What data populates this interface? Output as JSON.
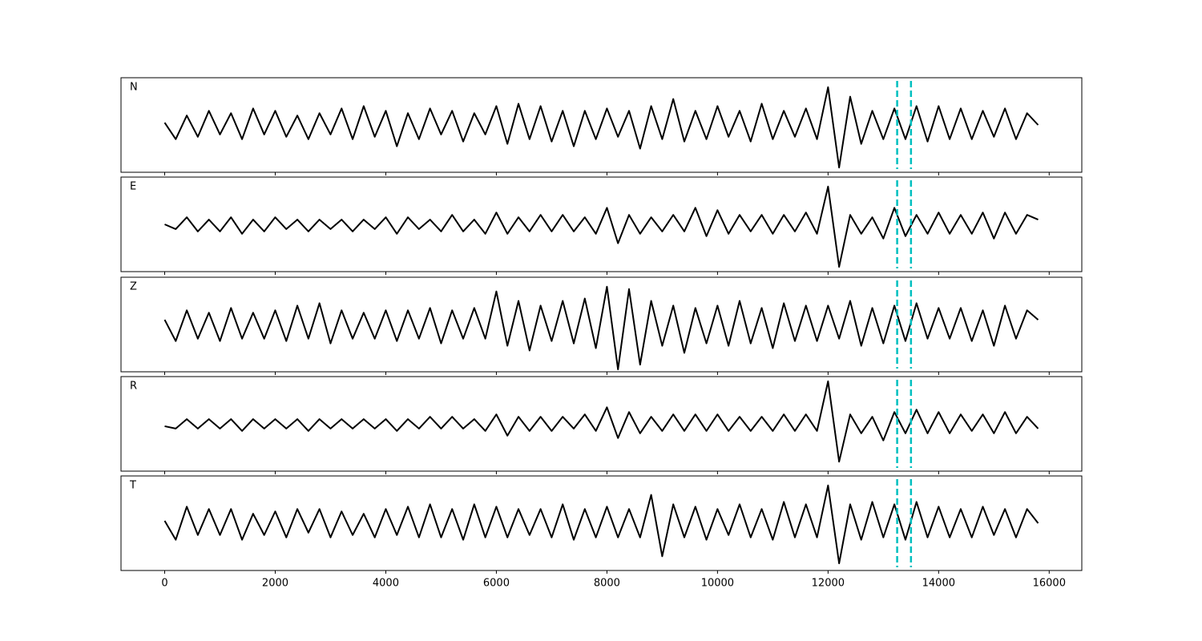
{
  "chart_data": {
    "type": "line",
    "x": [
      0,
      200,
      400,
      600,
      800,
      1000,
      1200,
      1400,
      1600,
      1800,
      2000,
      2200,
      2400,
      2600,
      2800,
      3000,
      3200,
      3400,
      3600,
      3800,
      4000,
      4200,
      4400,
      4600,
      4800,
      5000,
      5200,
      5400,
      5600,
      5800,
      6000,
      6200,
      6400,
      6600,
      6800,
      7000,
      7200,
      7400,
      7600,
      7800,
      8000,
      8200,
      8400,
      8600,
      8800,
      9000,
      9200,
      9400,
      9600,
      9800,
      10000,
      10200,
      10400,
      10600,
      10800,
      11000,
      11200,
      11400,
      11600,
      11800,
      12000,
      12200,
      12400,
      12600,
      12800,
      13000,
      13200,
      13400,
      13600,
      13800,
      14000,
      14200,
      14400,
      14600,
      14800,
      15000,
      15200,
      15400,
      15600,
      15800
    ],
    "xlim": [
      -790,
      16590
    ],
    "xticks": [
      0,
      2000,
      4000,
      6000,
      8000,
      10000,
      12000,
      14000,
      16000
    ],
    "ylim": [
      -1,
      1
    ],
    "series": [
      {
        "name": "N",
        "color": "#000000",
        "values": [
          0.05,
          -0.3,
          0.2,
          -0.25,
          0.3,
          -0.2,
          0.25,
          -0.3,
          0.35,
          -0.2,
          0.3,
          -0.25,
          0.2,
          -0.3,
          0.25,
          -0.2,
          0.35,
          -0.3,
          0.4,
          -0.25,
          0.3,
          -0.45,
          0.25,
          -0.3,
          0.35,
          -0.2,
          0.3,
          -0.35,
          0.25,
          -0.2,
          0.4,
          -0.4,
          0.45,
          -0.3,
          0.4,
          -0.35,
          0.3,
          -0.45,
          0.3,
          -0.3,
          0.35,
          -0.25,
          0.3,
          -0.5,
          0.4,
          -0.3,
          0.55,
          -0.35,
          0.3,
          -0.3,
          0.4,
          -0.25,
          0.3,
          -0.35,
          0.45,
          -0.3,
          0.3,
          -0.25,
          0.35,
          -0.3,
          0.8,
          -0.9,
          0.6,
          -0.4,
          0.3,
          -0.3,
          0.35,
          -0.3,
          0.4,
          -0.35,
          0.4,
          -0.3,
          0.35,
          -0.3,
          0.3,
          -0.25,
          0.35,
          -0.3,
          0.25,
          0.0
        ]
      },
      {
        "name": "E",
        "color": "#000000",
        "values": [
          0.0,
          -0.1,
          0.15,
          -0.15,
          0.1,
          -0.15,
          0.15,
          -0.2,
          0.1,
          -0.15,
          0.15,
          -0.1,
          0.1,
          -0.15,
          0.1,
          -0.1,
          0.1,
          -0.15,
          0.1,
          -0.1,
          0.15,
          -0.2,
          0.15,
          -0.1,
          0.1,
          -0.15,
          0.2,
          -0.15,
          0.1,
          -0.2,
          0.25,
          -0.2,
          0.15,
          -0.15,
          0.2,
          -0.15,
          0.2,
          -0.15,
          0.15,
          -0.2,
          0.35,
          -0.4,
          0.2,
          -0.2,
          0.15,
          -0.15,
          0.2,
          -0.15,
          0.35,
          -0.25,
          0.3,
          -0.2,
          0.2,
          -0.15,
          0.2,
          -0.2,
          0.2,
          -0.15,
          0.25,
          -0.2,
          0.8,
          -0.9,
          0.2,
          -0.2,
          0.15,
          -0.3,
          0.35,
          -0.25,
          0.2,
          -0.2,
          0.25,
          -0.2,
          0.2,
          -0.2,
          0.25,
          -0.3,
          0.25,
          -0.2,
          0.2,
          0.1
        ]
      },
      {
        "name": "Z",
        "color": "#000000",
        "values": [
          0.1,
          -0.35,
          0.3,
          -0.3,
          0.25,
          -0.35,
          0.35,
          -0.3,
          0.25,
          -0.3,
          0.3,
          -0.35,
          0.4,
          -0.3,
          0.45,
          -0.4,
          0.3,
          -0.3,
          0.25,
          -0.3,
          0.3,
          -0.35,
          0.3,
          -0.3,
          0.35,
          -0.4,
          0.3,
          -0.3,
          0.35,
          -0.3,
          0.7,
          -0.45,
          0.5,
          -0.55,
          0.4,
          -0.35,
          0.5,
          -0.4,
          0.55,
          -0.5,
          0.8,
          -0.95,
          0.75,
          -0.85,
          0.5,
          -0.45,
          0.4,
          -0.6,
          0.35,
          -0.4,
          0.4,
          -0.45,
          0.5,
          -0.4,
          0.35,
          -0.5,
          0.45,
          -0.35,
          0.4,
          -0.35,
          0.4,
          -0.3,
          0.5,
          -0.45,
          0.35,
          -0.4,
          0.4,
          -0.35,
          0.45,
          -0.3,
          0.35,
          -0.3,
          0.35,
          -0.35,
          0.3,
          -0.45,
          0.4,
          -0.3,
          0.3,
          0.1
        ]
      },
      {
        "name": "R",
        "color": "#000000",
        "values": [
          -0.05,
          -0.1,
          0.1,
          -0.1,
          0.1,
          -0.1,
          0.1,
          -0.15,
          0.1,
          -0.1,
          0.1,
          -0.1,
          0.1,
          -0.15,
          0.1,
          -0.1,
          0.1,
          -0.1,
          0.1,
          -0.1,
          0.1,
          -0.15,
          0.1,
          -0.1,
          0.15,
          -0.1,
          0.15,
          -0.1,
          0.1,
          -0.15,
          0.2,
          -0.25,
          0.15,
          -0.15,
          0.15,
          -0.15,
          0.15,
          -0.1,
          0.2,
          -0.15,
          0.35,
          -0.3,
          0.25,
          -0.2,
          0.15,
          -0.15,
          0.2,
          -0.15,
          0.2,
          -0.15,
          0.2,
          -0.15,
          0.15,
          -0.15,
          0.15,
          -0.15,
          0.2,
          -0.15,
          0.2,
          -0.15,
          0.9,
          -0.8,
          0.2,
          -0.2,
          0.15,
          -0.35,
          0.25,
          -0.2,
          0.3,
          -0.2,
          0.25,
          -0.2,
          0.2,
          -0.15,
          0.2,
          -0.2,
          0.25,
          -0.2,
          0.15,
          -0.1
        ]
      },
      {
        "name": "T",
        "color": "#000000",
        "values": [
          0.05,
          -0.35,
          0.35,
          -0.25,
          0.3,
          -0.25,
          0.3,
          -0.35,
          0.2,
          -0.25,
          0.25,
          -0.3,
          0.3,
          -0.2,
          0.3,
          -0.3,
          0.25,
          -0.25,
          0.2,
          -0.3,
          0.3,
          -0.25,
          0.35,
          -0.3,
          0.4,
          -0.3,
          0.3,
          -0.35,
          0.4,
          -0.3,
          0.35,
          -0.3,
          0.3,
          -0.25,
          0.3,
          -0.3,
          0.4,
          -0.35,
          0.3,
          -0.3,
          0.35,
          -0.3,
          0.3,
          -0.3,
          0.6,
          -0.7,
          0.4,
          -0.3,
          0.35,
          -0.35,
          0.3,
          -0.25,
          0.4,
          -0.3,
          0.3,
          -0.35,
          0.45,
          -0.3,
          0.4,
          -0.3,
          0.8,
          -0.85,
          0.4,
          -0.35,
          0.45,
          -0.3,
          0.4,
          -0.35,
          0.45,
          -0.3,
          0.35,
          -0.3,
          0.3,
          -0.3,
          0.35,
          -0.25,
          0.3,
          -0.3,
          0.3,
          0.0
        ]
      }
    ],
    "markers": {
      "x": [
        13250,
        13500
      ],
      "color": "#00bfbf"
    }
  }
}
